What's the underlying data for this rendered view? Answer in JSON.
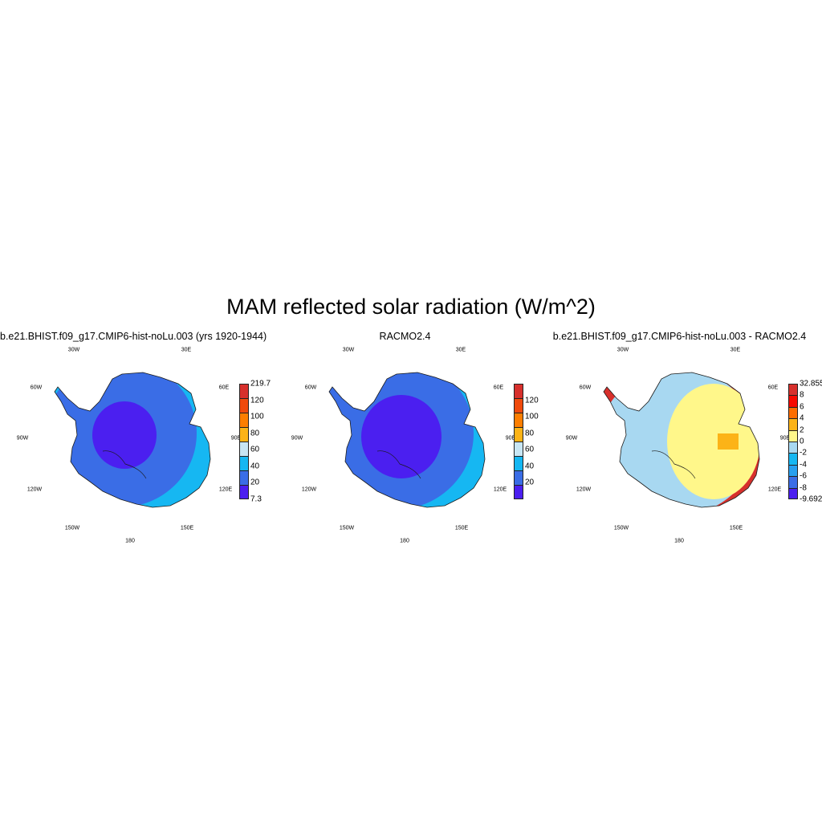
{
  "title": "MAM reflected solar radiation (W/m^2)",
  "longitude_labels": [
    "30W",
    "30E",
    "60W",
    "60E",
    "90W",
    "90E",
    "120W",
    "120E",
    "150W",
    "150E",
    "180"
  ],
  "panels": [
    {
      "title": "b.e21.BHIST.f09_g17.CMIP6-hist-noLu.003 (yrs 1920-1944)",
      "colorbar": {
        "labels": [
          "219.7",
          "120",
          "100",
          "80",
          "60",
          "40",
          "20",
          "7.3"
        ],
        "colors": [
          "#d7302c",
          "#f04a0c",
          "#fd7e00",
          "#fcb317",
          "#c8e6f4",
          "#16b7f2",
          "#3a6de6",
          "#4b1ff0"
        ]
      }
    },
    {
      "title": "RACMO2.4",
      "colorbar": {
        "labels": [
          "",
          "120",
          "100",
          "80",
          "60",
          "40",
          "20",
          ""
        ],
        "colors": [
          "#d7302c",
          "#f04a0c",
          "#fd7e00",
          "#fcb317",
          "#c8e6f4",
          "#16b7f2",
          "#3a6de6",
          "#4b1ff0"
        ]
      }
    },
    {
      "title": "b.e21.BHIST.f09_g17.CMIP6-hist-noLu.003 - RACMO2.4",
      "colorbar": {
        "labels": [
          "32.855",
          "8",
          "6",
          "4",
          "2",
          "0",
          "-2",
          "-4",
          "-6",
          "-8",
          "-9.692"
        ],
        "colors": [
          "#d7302c",
          "#f70a00",
          "#fd6d00",
          "#fcb317",
          "#fff78a",
          "#a8d8f1",
          "#16b7f2",
          "#27a0f0",
          "#3a6de6",
          "#4b1ff0"
        ]
      }
    }
  ]
}
